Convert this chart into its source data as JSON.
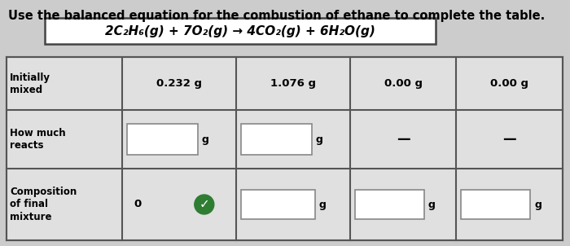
{
  "title": "Use the balanced equation for the combustion of ethane to complete the table.",
  "equation": "2C₂H₆(g) + 7O₂(g) → 4CO₂(g) + 6H₂O(g)",
  "row_labels": [
    "Initially\nmixed",
    "How much\nreacts",
    "Composition\nof final\nmixture"
  ],
  "bg_color": "#cccccc",
  "table_bg": "#e0e0e0",
  "check_color": "#2e7d32",
  "title_fontsize": 10.5,
  "eq_fontsize": 11,
  "cell_fontsize": 9.5,
  "label_fontsize": 8.5
}
